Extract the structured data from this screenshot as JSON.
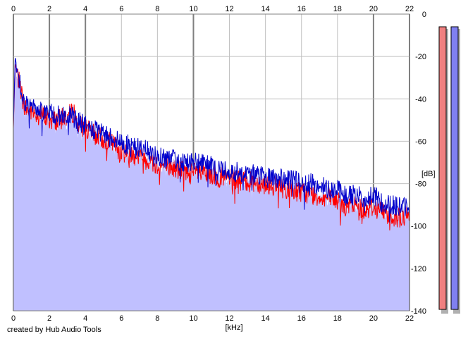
{
  "credit": "created by Hub Audio Tools",
  "colors": {
    "background": "#ffffff",
    "fill": "#c0c0ff",
    "left_channel": "#ff0000",
    "right_channel": "#0000cc",
    "grid_minor": "#c0c0c0",
    "grid_major": "#808080",
    "meter_left": "#f08080",
    "meter_right": "#8080f0",
    "meter_shadow": "#b0b0b0"
  },
  "chart_data": {
    "type": "area",
    "title": "",
    "xlabel": "[kHz]",
    "ylabel": "[dB]",
    "xlim": [
      0,
      22
    ],
    "ylim": [
      -140,
      0
    ],
    "x_ticks": [
      0,
      2,
      4,
      6,
      8,
      10,
      12,
      14,
      16,
      18,
      20,
      22
    ],
    "y_ticks": [
      0,
      -20,
      -40,
      -60,
      -80,
      -100,
      -120,
      -140
    ],
    "x_major_ticks": [
      0,
      2,
      4,
      10,
      20,
      22
    ],
    "grid": true,
    "series": [
      {
        "name": "",
        "color": "#ff0000",
        "x": [
          0,
          0.1,
          0.2,
          0.4,
          0.6,
          1,
          1.5,
          2,
          2.5,
          3,
          3.4,
          3.5,
          4,
          4.5,
          5,
          5.5,
          6,
          7,
          8,
          9,
          10,
          11,
          12,
          13,
          14,
          15,
          16,
          17,
          18,
          18.5,
          19,
          19.5,
          20,
          20.5,
          21,
          21.5,
          22
        ],
        "values": [
          -54,
          -23,
          -28,
          -35,
          -44,
          -46,
          -47,
          -50,
          -50,
          -48,
          -46,
          -51,
          -54,
          -57,
          -59,
          -61,
          -65,
          -67,
          -71,
          -73,
          -75,
          -76,
          -78,
          -79,
          -80,
          -82,
          -84,
          -86,
          -88,
          -91,
          -90,
          -92,
          -91,
          -93,
          -95,
          -96,
          -96
        ]
      },
      {
        "name": "",
        "color": "#0000cc",
        "x": [
          0,
          0.1,
          0.2,
          0.4,
          0.6,
          1,
          1.5,
          2,
          2.5,
          3,
          3.4,
          3.5,
          4,
          4.5,
          5,
          5.5,
          6,
          7,
          8,
          9,
          10,
          11,
          12,
          13,
          14,
          15,
          16,
          17,
          18,
          18.5,
          19,
          19.5,
          20,
          20.5,
          21,
          21.5,
          22
        ],
        "values": [
          -53,
          -20,
          -26,
          -33,
          -42,
          -44,
          -45,
          -47,
          -48,
          -48,
          -49,
          -50,
          -53,
          -55,
          -57,
          -58,
          -61,
          -63,
          -67,
          -69,
          -70,
          -72,
          -74,
          -75,
          -77,
          -78,
          -79,
          -81,
          -83,
          -86,
          -85,
          -87,
          -86,
          -89,
          -90,
          -91,
          -91
        ]
      }
    ]
  },
  "meters": [
    {
      "color": "#f08080"
    },
    {
      "color": "#8080f0"
    }
  ]
}
